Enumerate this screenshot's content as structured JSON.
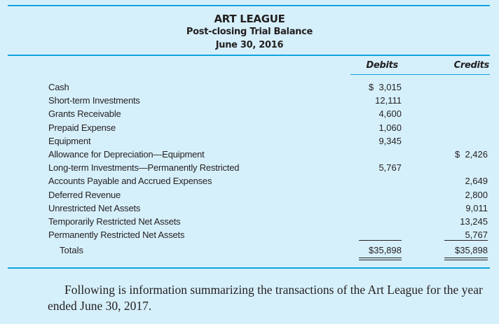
{
  "header": {
    "title": "ART LEAGUE",
    "subtitle": "Post-closing Trial Balance",
    "date": "June 30, 2016"
  },
  "columns": {
    "debits": "Debits",
    "credits": "Credits"
  },
  "rows": [
    {
      "label": "Cash",
      "debit": "$  3,015",
      "credit": ""
    },
    {
      "label": "Short-term Investments",
      "debit": "12,111",
      "credit": ""
    },
    {
      "label": "Grants Receivable",
      "debit": "4,600",
      "credit": ""
    },
    {
      "label": "Prepaid Expense",
      "debit": "1,060",
      "credit": ""
    },
    {
      "label": "Equipment",
      "debit": "9,345",
      "credit": ""
    },
    {
      "label": "Allowance for Depreciation—Equipment",
      "debit": "",
      "credit": "$  2,426"
    },
    {
      "label": "Long-term Investments—Permanently Restricted",
      "debit": "5,767",
      "credit": ""
    },
    {
      "label": "Accounts Payable and Accrued Expenses",
      "debit": "",
      "credit": "2,649"
    },
    {
      "label": "Deferred Revenue",
      "debit": "",
      "credit": "2,800"
    },
    {
      "label": "Unrestricted Net Assets",
      "debit": "",
      "credit": "9,011"
    },
    {
      "label": "Temporarily Restricted Net Assets",
      "debit": "",
      "credit": "13,245"
    },
    {
      "label": "Permanently Restricted Net Assets",
      "debit": "",
      "credit": "5,767"
    }
  ],
  "totals": {
    "label": "Totals",
    "debit": "$35,898",
    "credit": "$35,898"
  },
  "paragraph": "Following is information summarizing the transactions of the Art League for the year ended June 30, 2017.",
  "colors": {
    "background": "#d6f0fb",
    "rule": "#12a4dc",
    "text": "#231f20"
  }
}
